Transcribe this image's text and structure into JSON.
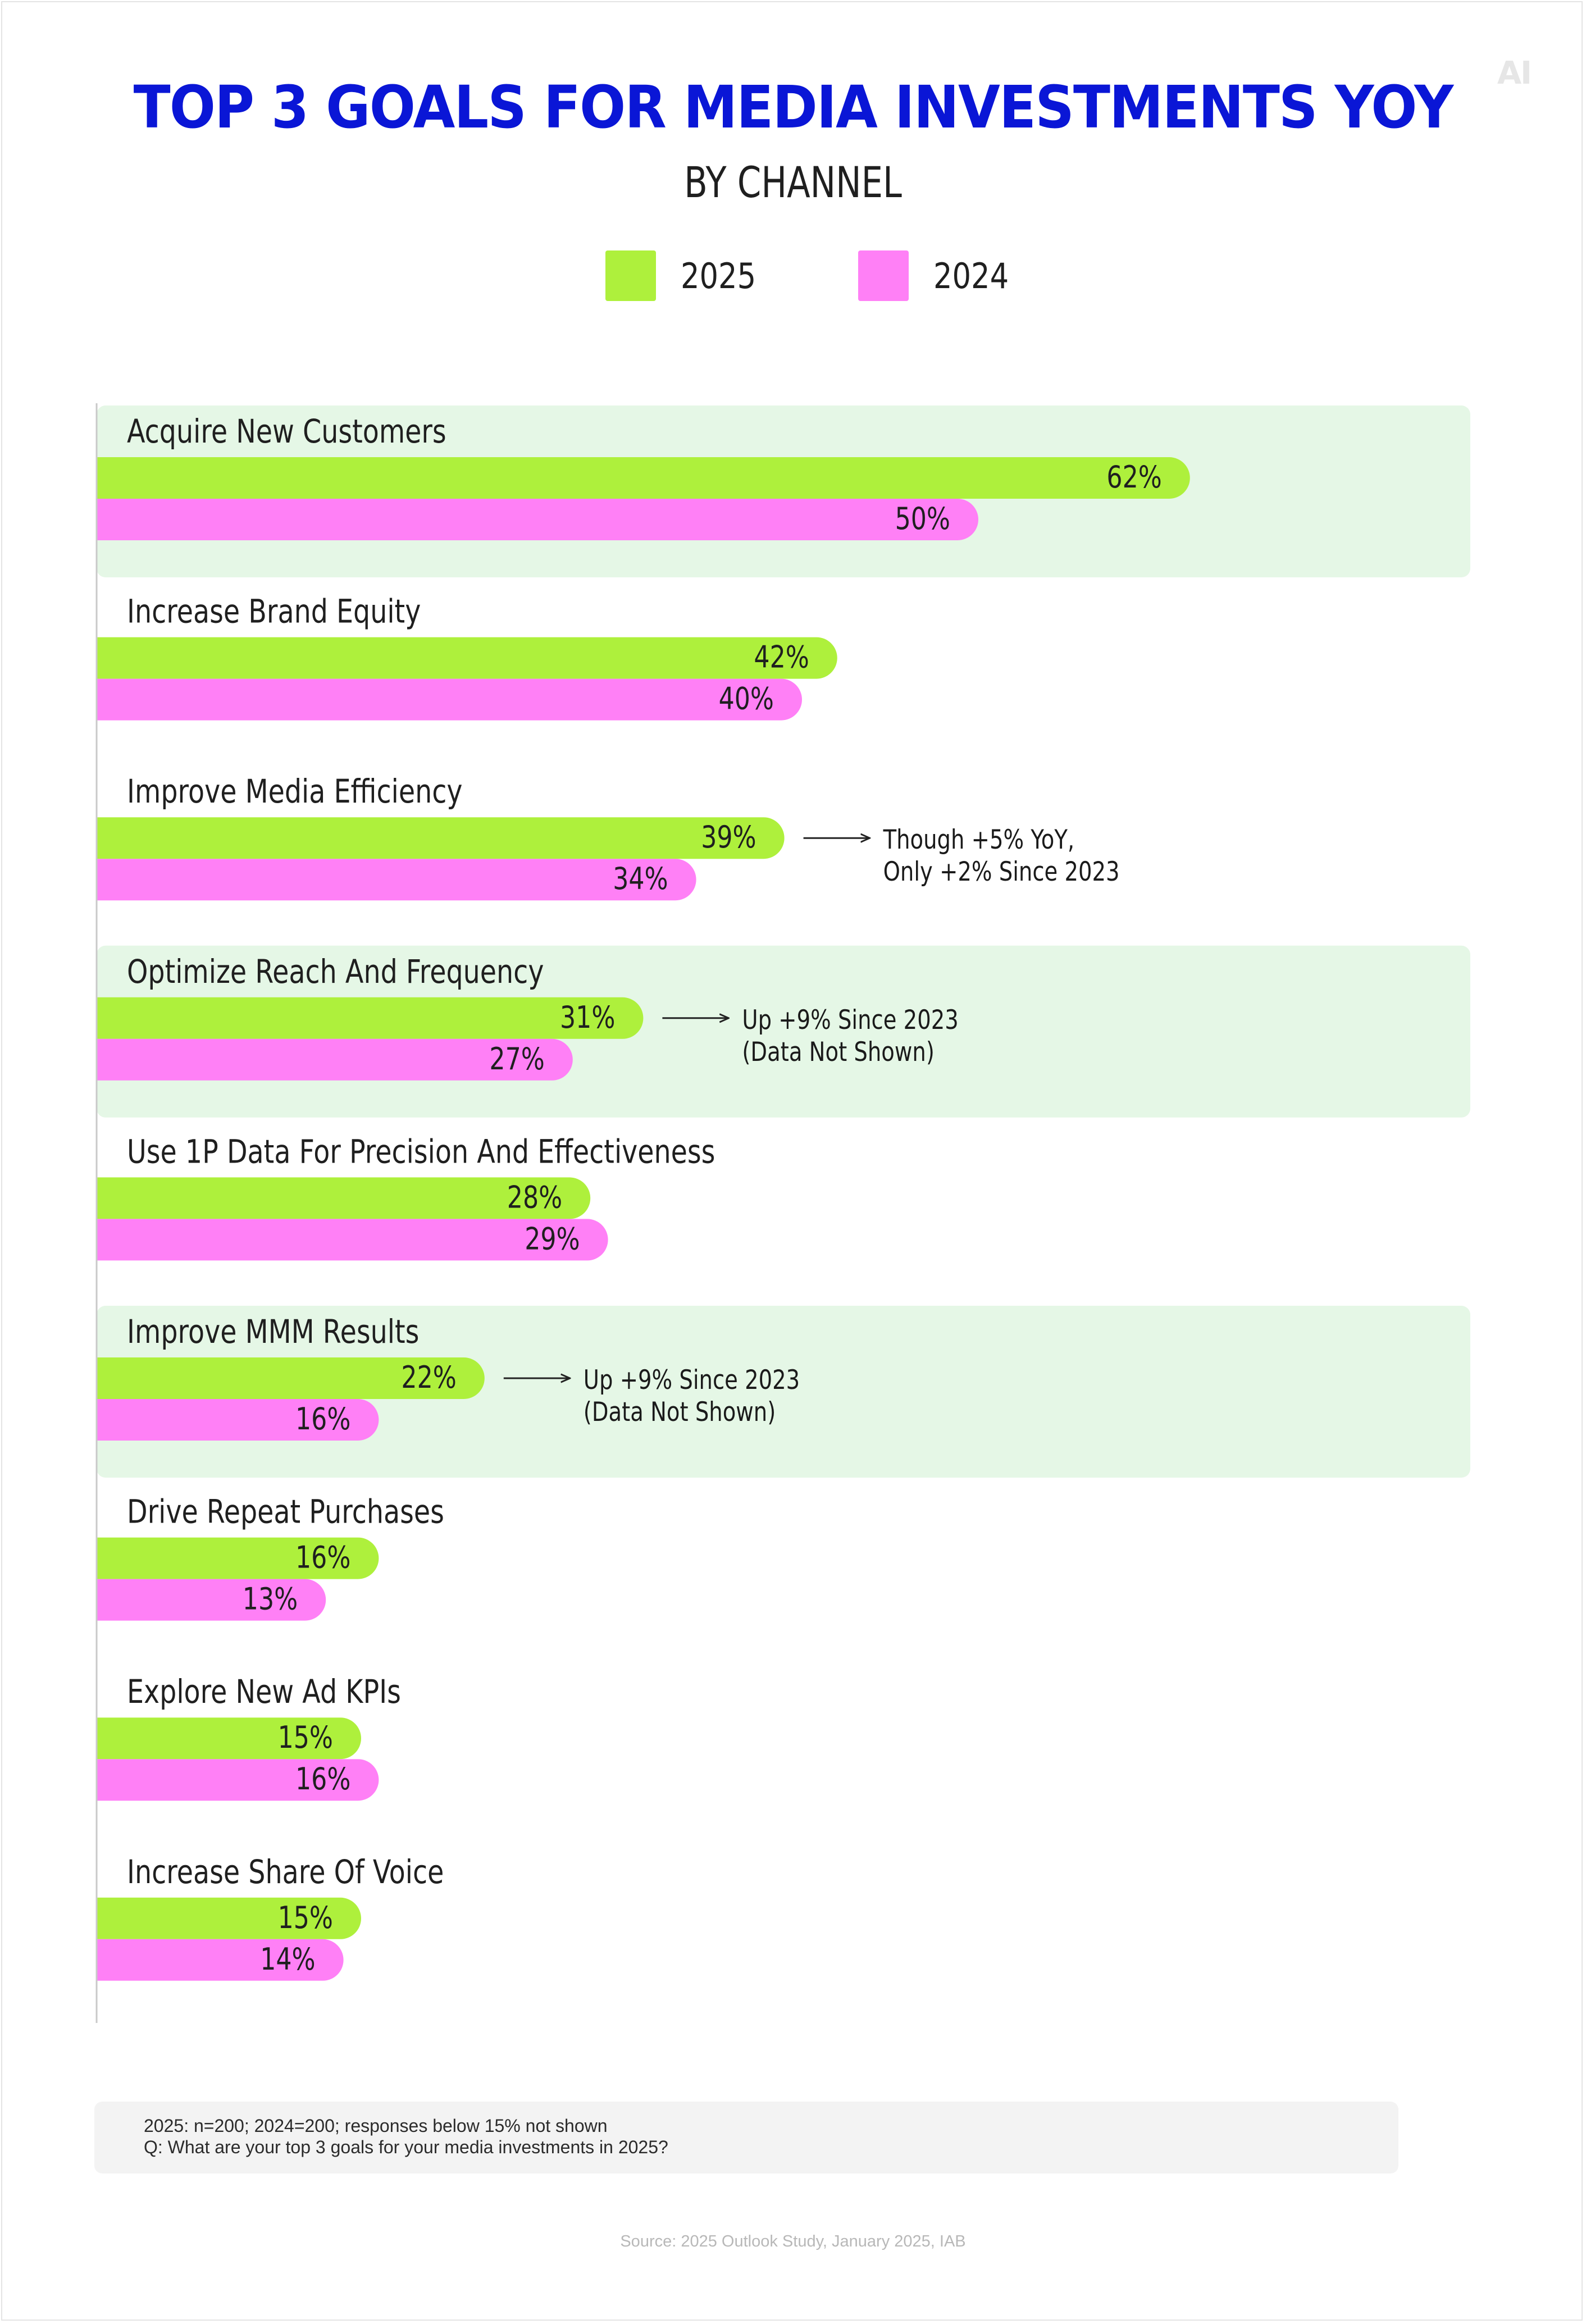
{
  "header": {
    "logo": "AI",
    "title": "TOP 3 GOALS FOR MEDIA INVESTMENTS YOY",
    "subtitle": "BY CHANNEL"
  },
  "colors": {
    "series_2025": "#aef03c",
    "series_2024": "#ff80f6",
    "highlight_band": "#e5f7e6",
    "title": "#0a16d6"
  },
  "chart_data": {
    "type": "bar",
    "orientation": "horizontal",
    "title": "TOP 3 GOALS FOR MEDIA INVESTMENTS YOY",
    "subtitle": "BY CHANNEL",
    "legend": {
      "placement": "top-center",
      "entries": [
        "2025",
        "2024"
      ]
    },
    "xlim": [
      0,
      100
    ],
    "unit": "%",
    "grid": false,
    "categories": [
      "Acquire New Customers",
      "Increase Brand Equity",
      "Improve Media Efficiency",
      "Optimize Reach And Frequency",
      "Use 1P Data For Precision And Effectiveness",
      "Improve MMM Results",
      "Drive Repeat Purchases",
      "Explore New Ad KPIs",
      "Increase Share Of Voice"
    ],
    "series": [
      {
        "name": "2025",
        "values": [
          62,
          42,
          39,
          31,
          28,
          22,
          16,
          15,
          15
        ]
      },
      {
        "name": "2024",
        "values": [
          50,
          40,
          34,
          27,
          29,
          16,
          13,
          16,
          14
        ]
      }
    ],
    "highlighted_categories": [
      0,
      3,
      5
    ],
    "annotations": [
      {
        "category": 2,
        "lines": [
          "Though +5% YoY,",
          "Only +2% Since 2023"
        ]
      },
      {
        "category": 3,
        "lines": [
          "Up +9% Since 2023",
          "(Data Not Shown)"
        ]
      },
      {
        "category": 5,
        "lines": [
          "Up +9% Since 2023",
          "(Data Not Shown)"
        ]
      }
    ]
  },
  "footnote": {
    "line1": "2025: n=200; 2024=200; responses below 15% not shown",
    "line2": "Q: What are your top 3 goals for your media investments in 2025?"
  },
  "source": "Source: 2025 Outlook Study, January 2025, IAB"
}
